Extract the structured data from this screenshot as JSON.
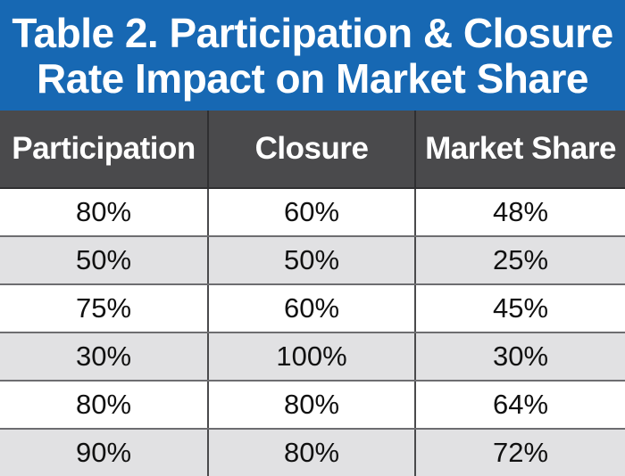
{
  "title": {
    "line1": "Table 2. Participation & Closure",
    "line2": "Rate Impact on Market Share"
  },
  "table": {
    "headers": [
      "Participation",
      "Closure",
      "Market Share"
    ],
    "rows": [
      [
        "80%",
        "60%",
        "48%"
      ],
      [
        "50%",
        "50%",
        "25%"
      ],
      [
        "75%",
        "60%",
        "45%"
      ],
      [
        "30%",
        "100%",
        "30%"
      ],
      [
        "80%",
        "80%",
        "64%"
      ],
      [
        "90%",
        "80%",
        "72%"
      ]
    ]
  },
  "colors": {
    "title_background": "#1768b3",
    "header_background": "#4a4a4c",
    "row_alt_background": "#e1e1e3",
    "row_background": "#ffffff"
  }
}
